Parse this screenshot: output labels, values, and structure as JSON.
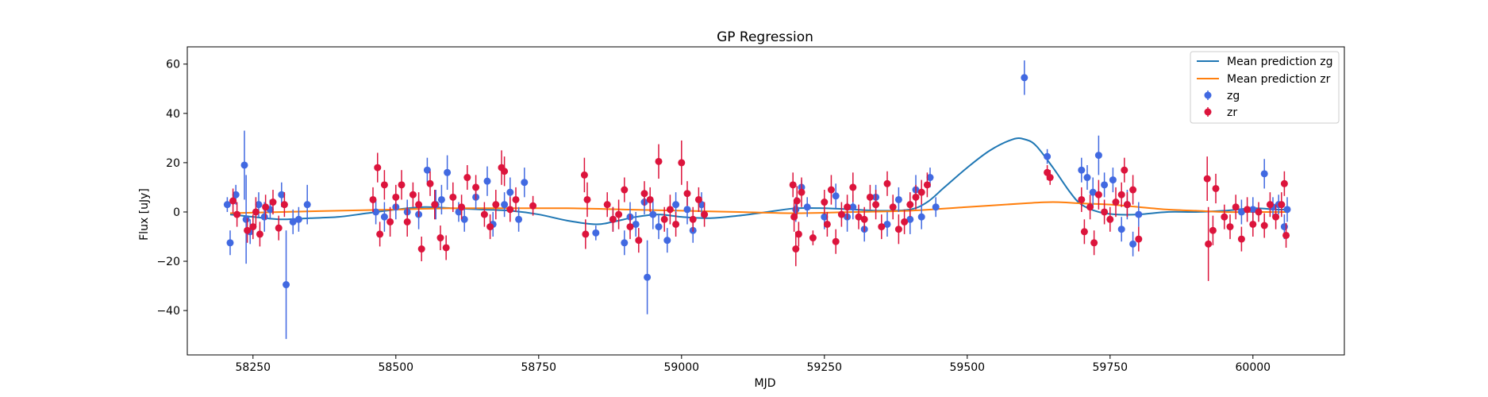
{
  "chart_data": {
    "type": "scatter",
    "title": "GP Regression",
    "xlabel": "MJD",
    "ylabel": "Flux [uJy]",
    "xlim": [
      58135,
      60160
    ],
    "ylim": [
      -58,
      67
    ],
    "xticks": [
      58250,
      58500,
      58750,
      59000,
      59250,
      59500,
      59750,
      60000
    ],
    "yticks": [
      -40,
      -20,
      0,
      20,
      40,
      60
    ],
    "grid": false,
    "legend_position": "top-right",
    "legend": [
      "Mean prediction zg",
      "Mean prediction zr",
      "zg",
      "zr"
    ],
    "colors": {
      "zg_line": "#1f77b4",
      "zr_line": "#ff7f0e",
      "zg_pts": "#4169e1",
      "zr_pts": "#dc143c"
    },
    "lines": [
      {
        "name": "Mean prediction zg",
        "x": [
          58210,
          58250,
          58300,
          58350,
          58400,
          58450,
          58500,
          58550,
          58600,
          58650,
          58700,
          58750,
          58800,
          58850,
          58880,
          58920,
          58960,
          59000,
          59050,
          59100,
          59150,
          59200,
          59250,
          59300,
          59350,
          59400,
          59430,
          59460,
          59500,
          59540,
          59580,
          59600,
          59620,
          59650,
          59680,
          59700,
          59730,
          59760,
          59800,
          59850,
          59900,
          59950,
          60000,
          60040,
          60060
        ],
        "y": [
          -1,
          -2,
          -3,
          -2.5,
          -2,
          -0.5,
          1,
          2,
          1.5,
          1,
          0.5,
          -1,
          -3.5,
          -5,
          -4,
          -2,
          -1,
          -2,
          -2.5,
          -1.5,
          0,
          1.5,
          1.5,
          1,
          0.5,
          1,
          4,
          10,
          18,
          25,
          29.5,
          29.5,
          27,
          18,
          8,
          3,
          0,
          -1,
          -1,
          0,
          0,
          0.5,
          1.5,
          1,
          1
        ]
      },
      {
        "name": "Mean prediction zr",
        "x": [
          58210,
          58300,
          58400,
          58500,
          58600,
          58700,
          58800,
          58900,
          59000,
          59100,
          59200,
          59300,
          59400,
          59500,
          59600,
          59650,
          59700,
          59750,
          59800,
          59850,
          59900,
          59950,
          60000,
          60060
        ],
        "y": [
          -0.5,
          0,
          0.5,
          1,
          1.5,
          1.5,
          1.5,
          1,
          0.5,
          0,
          -0.5,
          0,
          0.5,
          2,
          3.5,
          4,
          3.5,
          3,
          2,
          1,
          0.5,
          0,
          0,
          0
        ]
      }
    ],
    "series": [
      {
        "name": "zg",
        "points": [
          [
            58205,
            3,
            3
          ],
          [
            58210,
            -12.5,
            5
          ],
          [
            58220,
            7,
            4
          ],
          [
            58235,
            19,
            14
          ],
          [
            58238,
            -3,
            18
          ],
          [
            58245,
            -8,
            5
          ],
          [
            58260,
            3,
            5
          ],
          [
            58270,
            -2,
            6
          ],
          [
            58280,
            1,
            4
          ],
          [
            58300,
            7,
            5
          ],
          [
            58308,
            -29.5,
            22
          ],
          [
            58320,
            -4,
            5
          ],
          [
            58330,
            -3,
            5
          ],
          [
            58345,
            3,
            8
          ],
          [
            58465,
            0,
            5
          ],
          [
            58480,
            -2,
            6
          ],
          [
            58500,
            2,
            5
          ],
          [
            58520,
            0,
            5
          ],
          [
            58540,
            -1,
            6
          ],
          [
            58555,
            17,
            5
          ],
          [
            58570,
            3,
            6
          ],
          [
            58580,
            5,
            6
          ],
          [
            58590,
            16,
            7
          ],
          [
            58610,
            0,
            4
          ],
          [
            58620,
            -3,
            5
          ],
          [
            58640,
            6,
            5
          ],
          [
            58660,
            12.5,
            6
          ],
          [
            58670,
            -5,
            5
          ],
          [
            58690,
            3,
            5
          ],
          [
            58700,
            8,
            6
          ],
          [
            58715,
            -3,
            5
          ],
          [
            58725,
            12,
            6
          ],
          [
            58850,
            -8.5,
            3
          ],
          [
            58880,
            -3,
            5
          ],
          [
            58900,
            -12.5,
            5
          ],
          [
            58910,
            -2,
            6
          ],
          [
            58920,
            -5,
            5
          ],
          [
            58935,
            4,
            5
          ],
          [
            58940,
            -26.5,
            15
          ],
          [
            58950,
            -1,
            6
          ],
          [
            58960,
            -6,
            5
          ],
          [
            58975,
            -11.5,
            5
          ],
          [
            58990,
            3,
            5
          ],
          [
            59010,
            1,
            6
          ],
          [
            59020,
            -7.5,
            5
          ],
          [
            59035,
            3,
            5
          ],
          [
            59200,
            1,
            5
          ],
          [
            59210,
            10,
            3
          ],
          [
            59220,
            2,
            4
          ],
          [
            59250,
            -2,
            5
          ],
          [
            59270,
            6.5,
            5
          ],
          [
            59290,
            -2,
            6
          ],
          [
            59300,
            2,
            5
          ],
          [
            59320,
            -7,
            5
          ],
          [
            59340,
            6,
            5
          ],
          [
            59360,
            -5,
            5
          ],
          [
            59380,
            5,
            5
          ],
          [
            59400,
            -3,
            6
          ],
          [
            59410,
            9,
            6
          ],
          [
            59420,
            -2,
            5
          ],
          [
            59435,
            14,
            4
          ],
          [
            59445,
            2,
            4
          ],
          [
            59600,
            54.5,
            7
          ],
          [
            59640,
            22.5,
            3
          ],
          [
            59700,
            17,
            5
          ],
          [
            59710,
            14,
            5
          ],
          [
            59720,
            8,
            6
          ],
          [
            59730,
            23,
            8
          ],
          [
            59740,
            11,
            5
          ],
          [
            59755,
            13,
            5
          ],
          [
            59770,
            -7,
            5
          ],
          [
            59780,
            3,
            6
          ],
          [
            59790,
            -13,
            5
          ],
          [
            59800,
            -1,
            5
          ],
          [
            59980,
            0,
            5
          ],
          [
            60000,
            1,
            5
          ],
          [
            60020,
            15.5,
            6
          ],
          [
            60035,
            2,
            4
          ],
          [
            60045,
            3,
            4
          ],
          [
            60055,
            -6,
            5
          ],
          [
            60060,
            1,
            5
          ]
        ]
      },
      {
        "name": "zr",
        "points": [
          [
            58215,
            4.5,
            5
          ],
          [
            58222,
            -1,
            5
          ],
          [
            58240,
            -7.5,
            5
          ],
          [
            58250,
            -6,
            5
          ],
          [
            58255,
            0,
            6
          ],
          [
            58262,
            -9,
            5
          ],
          [
            58272,
            2,
            5
          ],
          [
            58285,
            4,
            5
          ],
          [
            58295,
            -6.5,
            5
          ],
          [
            58305,
            3,
            5
          ],
          [
            58460,
            5,
            5
          ],
          [
            58468,
            18,
            6
          ],
          [
            58472,
            -9,
            5
          ],
          [
            58480,
            11,
            6
          ],
          [
            58490,
            -4,
            6
          ],
          [
            58500,
            6,
            5
          ],
          [
            58510,
            11,
            6
          ],
          [
            58520,
            -4,
            6
          ],
          [
            58530,
            7,
            5
          ],
          [
            58540,
            3,
            5
          ],
          [
            58545,
            -15,
            5
          ],
          [
            58560,
            11.5,
            5
          ],
          [
            58568,
            3,
            6
          ],
          [
            58578,
            -10.5,
            5
          ],
          [
            58588,
            -14.5,
            5
          ],
          [
            58600,
            6,
            6
          ],
          [
            58615,
            2,
            5
          ],
          [
            58625,
            14,
            5
          ],
          [
            58640,
            10,
            5
          ],
          [
            58655,
            -1,
            5
          ],
          [
            58665,
            -6,
            5
          ],
          [
            58675,
            3,
            6
          ],
          [
            58685,
            18,
            7
          ],
          [
            58690,
            16.5,
            6
          ],
          [
            58700,
            1,
            5
          ],
          [
            58710,
            5,
            5
          ],
          [
            58740,
            2.5,
            4
          ],
          [
            58830,
            15,
            7
          ],
          [
            58832,
            -9,
            6
          ],
          [
            58835,
            5,
            7
          ],
          [
            58870,
            3,
            5
          ],
          [
            58880,
            -3,
            5
          ],
          [
            58890,
            -1,
            6
          ],
          [
            58900,
            9,
            5
          ],
          [
            58910,
            -6,
            5
          ],
          [
            58925,
            -11.5,
            5
          ],
          [
            58935,
            7.5,
            5
          ],
          [
            58945,
            5,
            5
          ],
          [
            58960,
            20.5,
            7
          ],
          [
            58970,
            -3,
            5
          ],
          [
            58980,
            1,
            6
          ],
          [
            58990,
            -5,
            5
          ],
          [
            59000,
            20,
            9
          ],
          [
            59010,
            7.5,
            5
          ],
          [
            59020,
            -3,
            5
          ],
          [
            59030,
            5,
            5
          ],
          [
            59040,
            -1,
            5
          ],
          [
            59195,
            11,
            5
          ],
          [
            59197,
            -2,
            6
          ],
          [
            59200,
            -15,
            7
          ],
          [
            59202,
            4.5,
            6
          ],
          [
            59205,
            -9,
            5
          ],
          [
            59210,
            8,
            6
          ],
          [
            59230,
            -10.5,
            3
          ],
          [
            59250,
            4,
            5
          ],
          [
            59255,
            -5,
            5
          ],
          [
            59262,
            9,
            6
          ],
          [
            59270,
            -12,
            5
          ],
          [
            59280,
            -1,
            5
          ],
          [
            59290,
            2,
            5
          ],
          [
            59300,
            10,
            6
          ],
          [
            59310,
            -2,
            5
          ],
          [
            59320,
            -3,
            5
          ],
          [
            59330,
            6,
            5
          ],
          [
            59340,
            3,
            6
          ],
          [
            59350,
            -6,
            5
          ],
          [
            59360,
            11.5,
            5
          ],
          [
            59370,
            2,
            5
          ],
          [
            59380,
            -7,
            6
          ],
          [
            59390,
            -4,
            5
          ],
          [
            59400,
            3,
            5
          ],
          [
            59410,
            6,
            5
          ],
          [
            59420,
            8,
            5
          ],
          [
            59430,
            11,
            5
          ],
          [
            59640,
            16,
            3
          ],
          [
            59645,
            14,
            3
          ],
          [
            59700,
            5,
            5
          ],
          [
            59705,
            -8,
            5
          ],
          [
            59715,
            2,
            5
          ],
          [
            59722,
            -12.5,
            5
          ],
          [
            59730,
            7,
            6
          ],
          [
            59740,
            0,
            5
          ],
          [
            59750,
            -3,
            5
          ],
          [
            59760,
            4,
            6
          ],
          [
            59770,
            7,
            5
          ],
          [
            59775,
            17,
            5
          ],
          [
            59780,
            3,
            5
          ],
          [
            59790,
            9,
            6
          ],
          [
            59800,
            -11,
            5
          ],
          [
            59920,
            13.5,
            9
          ],
          [
            59922,
            -13,
            15
          ],
          [
            59930,
            -7.5,
            6
          ],
          [
            59935,
            9.5,
            6
          ],
          [
            59950,
            -2,
            5
          ],
          [
            59960,
            -6,
            5
          ],
          [
            59970,
            2,
            5
          ],
          [
            59980,
            -11,
            5
          ],
          [
            59990,
            1,
            5
          ],
          [
            60000,
            -5,
            5
          ],
          [
            60010,
            0,
            4
          ],
          [
            60020,
            -5.5,
            5
          ],
          [
            60030,
            3,
            5
          ],
          [
            60040,
            -2,
            5
          ],
          [
            60050,
            3,
            5
          ],
          [
            60055,
            11.5,
            5
          ],
          [
            60058,
            -9.5,
            5
          ]
        ]
      }
    ]
  }
}
